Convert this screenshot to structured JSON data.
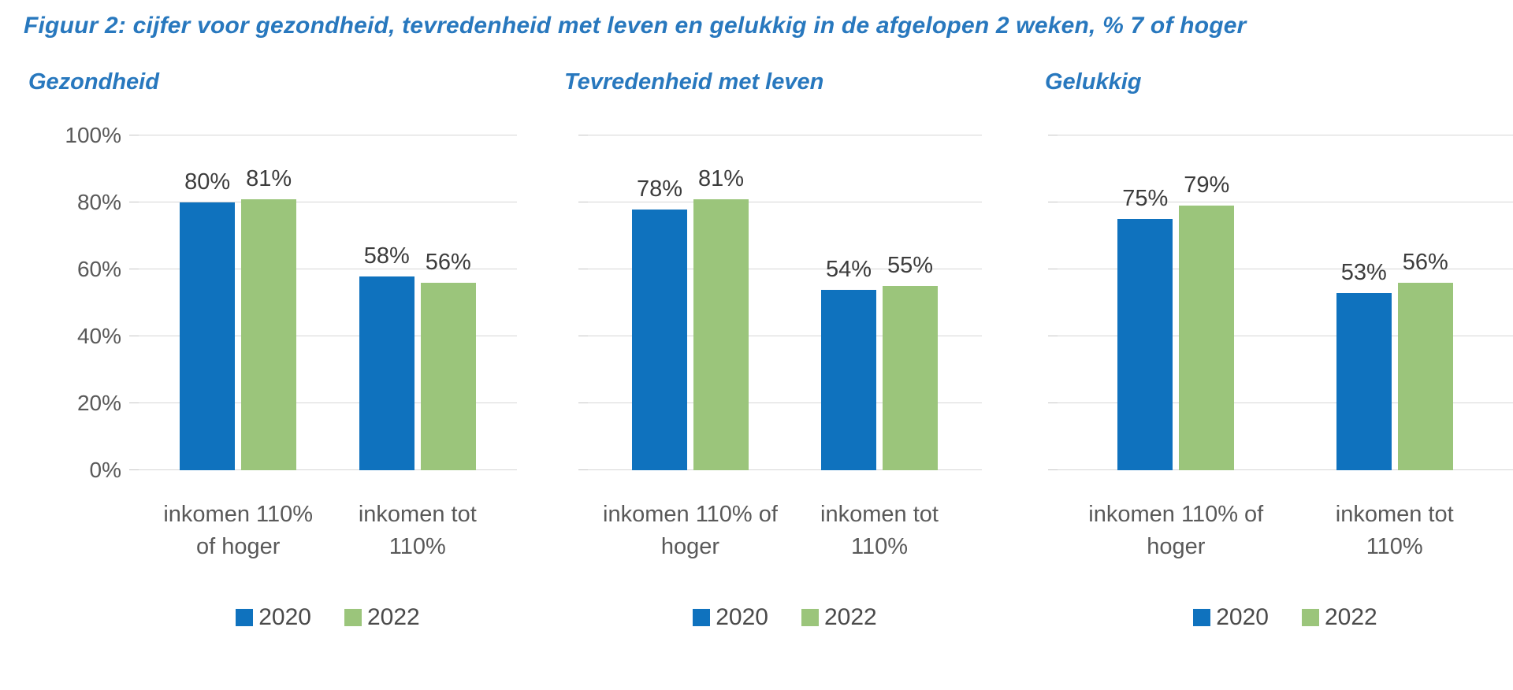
{
  "figure_title": "Figuur 2: cijfer voor gezondheid, tevredenheid met leven en gelukkig in de afgelopen 2 weken, % 7 of hoger",
  "colors": {
    "title_blue": "#2878BE",
    "series_2020_blue": "#0F72BE",
    "series_2022_green": "#9BC57B",
    "gridline_gray": "#D6D6D6",
    "axis_text_gray": "#595959",
    "value_text_gray": "#3C3C3C"
  },
  "chart_data": [
    {
      "type": "bar",
      "title": "Gezondheid",
      "categories": [
        "inkomen 110% of hoger",
        "inkomen tot 110%"
      ],
      "category_lines": [
        [
          "inkomen 110%",
          "of hoger"
        ],
        [
          "inkomen tot",
          "110%"
        ]
      ],
      "series": [
        {
          "name": "2020",
          "color": "#0F72BE",
          "values": [
            80,
            58
          ],
          "labels": [
            "80%",
            "58%"
          ]
        },
        {
          "name": "2022",
          "color": "#9BC57B",
          "values": [
            81,
            56
          ],
          "labels": [
            "81%",
            "56%"
          ]
        }
      ],
      "ylim": [
        0,
        100
      ],
      "y_ticks": [
        "100%",
        "80%",
        "60%",
        "40%",
        "20%",
        "0%"
      ],
      "y_axis_labels_visible": true,
      "grid": true,
      "legend_position": "bottom"
    },
    {
      "type": "bar",
      "title": "Tevredenheid met leven",
      "categories": [
        "inkomen 110% of hoger",
        "inkomen tot 110%"
      ],
      "category_lines": [
        [
          "inkomen 110% of",
          "hoger"
        ],
        [
          "inkomen tot",
          "110%"
        ]
      ],
      "series": [
        {
          "name": "2020",
          "color": "#0F72BE",
          "values": [
            78,
            54
          ],
          "labels": [
            "78%",
            "54%"
          ]
        },
        {
          "name": "2022",
          "color": "#9BC57B",
          "values": [
            81,
            55
          ],
          "labels": [
            "81%",
            "55%"
          ]
        }
      ],
      "ylim": [
        0,
        100
      ],
      "y_ticks": [
        "100%",
        "80%",
        "60%",
        "40%",
        "20%",
        "0%"
      ],
      "y_axis_labels_visible": false,
      "grid": true,
      "legend_position": "bottom"
    },
    {
      "type": "bar",
      "title": "Gelukkig",
      "categories": [
        "inkomen 110% of hoger",
        "inkomen tot 110%"
      ],
      "category_lines": [
        [
          "inkomen 110% of",
          "hoger"
        ],
        [
          "inkomen tot",
          "110%"
        ]
      ],
      "series": [
        {
          "name": "2020",
          "color": "#0F72BE",
          "values": [
            75,
            53
          ],
          "labels": [
            "75%",
            "53%"
          ]
        },
        {
          "name": "2022",
          "color": "#9BC57B",
          "values": [
            79,
            56
          ],
          "labels": [
            "79%",
            "56%"
          ]
        }
      ],
      "ylim": [
        0,
        100
      ],
      "y_ticks": [
        "100%",
        "80%",
        "60%",
        "40%",
        "20%",
        "0%"
      ],
      "y_axis_labels_visible": false,
      "grid": true,
      "legend_position": "bottom"
    }
  ]
}
